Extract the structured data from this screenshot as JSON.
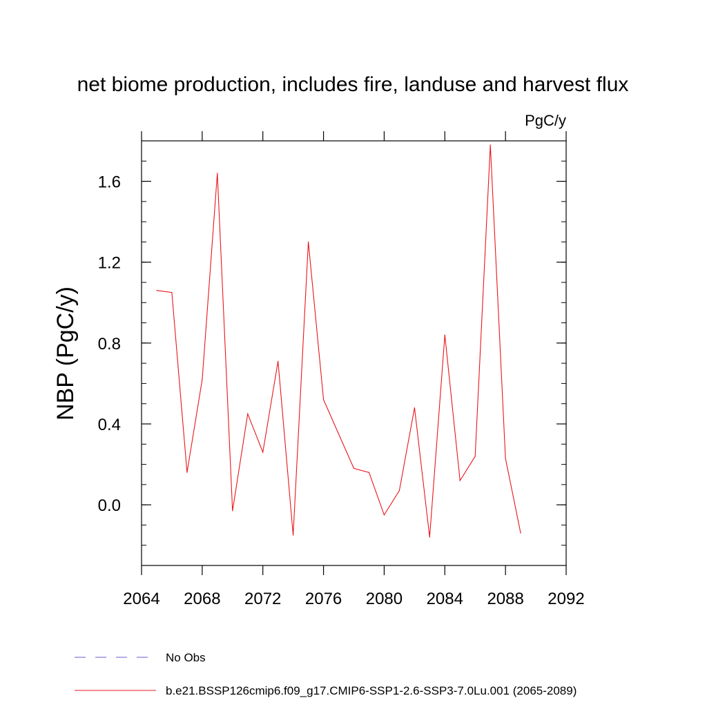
{
  "chart_data": {
    "type": "line",
    "title": "net biome production, includes fire, landuse and harvest flux",
    "units_label": "PgC/y",
    "xlabel": "",
    "ylabel": "NBP  (PgC/y)",
    "xlim": [
      2064,
      2092
    ],
    "ylim": [
      -0.3,
      1.8
    ],
    "x_ticks": [
      2064,
      2068,
      2072,
      2076,
      2080,
      2084,
      2088,
      2092
    ],
    "x_tick_labels": [
      "2064",
      "2068",
      "2072",
      "2076",
      "2080",
      "2084",
      "2088",
      "2092"
    ],
    "y_ticks": [
      0.0,
      0.4,
      0.8,
      1.2,
      1.6
    ],
    "y_tick_labels": [
      "0.0",
      "0.4",
      "0.8",
      "1.2",
      "1.6"
    ],
    "grid": false,
    "legend_position": "bottom",
    "series": [
      {
        "name": "b.e21.BSSP126cmip6.f09_g17.CMIP6-SSP1-2.6-SSP3-7.0Lu.001 (2065-2089)",
        "color": "#e8141b",
        "style": "solid",
        "x": [
          2065,
          2066,
          2067,
          2068,
          2069,
          2070,
          2071,
          2072,
          2073,
          2074,
          2075,
          2076,
          2077,
          2078,
          2079,
          2080,
          2081,
          2082,
          2083,
          2084,
          2085,
          2086,
          2087,
          2088,
          2089
        ],
        "values": [
          1.06,
          1.05,
          0.16,
          0.62,
          1.64,
          -0.03,
          0.45,
          0.26,
          0.71,
          -0.15,
          1.3,
          0.52,
          0.35,
          0.18,
          0.16,
          -0.05,
          0.07,
          0.48,
          -0.16,
          0.84,
          0.12,
          0.24,
          1.78,
          0.23,
          -0.14
        ]
      }
    ],
    "legend": [
      {
        "label": "No Obs",
        "color": "#6a5acd",
        "style": "dashed"
      },
      {
        "label": "b.e21.BSSP126cmip6.f09_g17.CMIP6-SSP1-2.6-SSP3-7.0Lu.001 (2065-2089)",
        "color": "#e8141b",
        "style": "solid"
      }
    ]
  }
}
